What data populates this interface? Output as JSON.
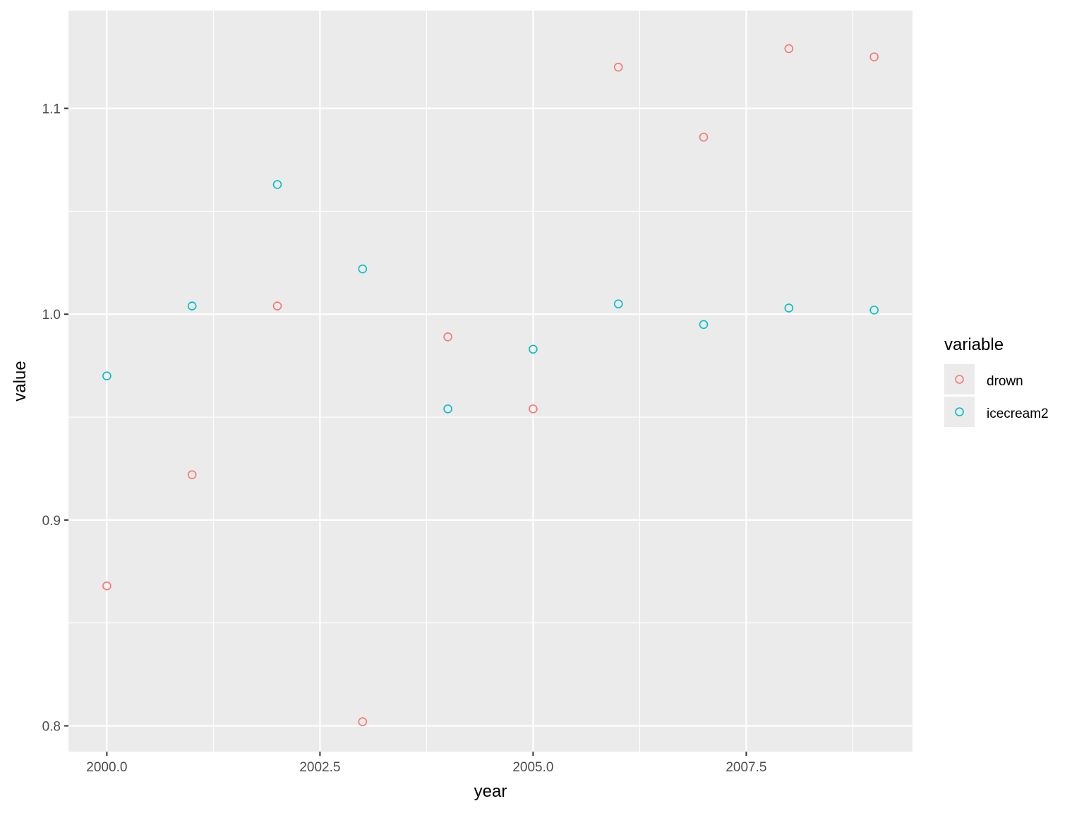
{
  "chart_data": {
    "type": "scatter",
    "xlabel": "year",
    "ylabel": "value",
    "xlim": [
      1999.55,
      2009.45
    ],
    "ylim": [
      0.7875,
      1.1475
    ],
    "x_ticks": [
      2000.0,
      2002.5,
      2005.0,
      2007.5
    ],
    "x_tick_labels": [
      "2000.0",
      "2002.5",
      "2005.0",
      "2007.5"
    ],
    "y_ticks": [
      0.8,
      0.9,
      1.0,
      1.1
    ],
    "y_tick_labels": [
      "0.8",
      "0.9",
      "1.0",
      "1.1"
    ],
    "grid": true,
    "legend": {
      "title": "variable",
      "position": "right"
    },
    "series": [
      {
        "name": "drown",
        "color": "#F8766D",
        "x": [
          2000,
          2001,
          2002,
          2003,
          2004,
          2005,
          2006,
          2007,
          2008,
          2009
        ],
        "y": [
          0.868,
          0.922,
          1.004,
          0.802,
          0.989,
          0.954,
          1.12,
          1.086,
          1.129,
          1.125
        ]
      },
      {
        "name": "icecream2",
        "color": "#00BFC4",
        "x": [
          2000,
          2001,
          2002,
          2003,
          2004,
          2005,
          2006,
          2007,
          2008,
          2009
        ],
        "y": [
          0.97,
          1.004,
          1.063,
          1.022,
          0.954,
          0.983,
          1.005,
          0.995,
          1.003,
          1.002
        ]
      }
    ]
  }
}
